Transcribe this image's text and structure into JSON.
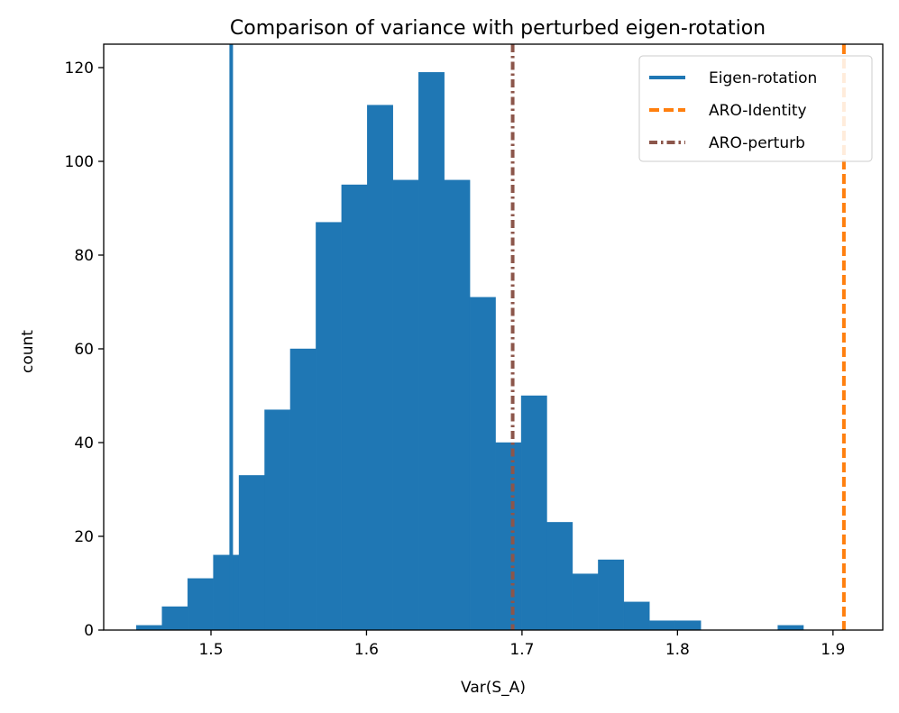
{
  "chart_data": {
    "type": "bar",
    "title": "Comparison of variance with perturbed eigen-rotation",
    "xlabel": "Var(S_A)",
    "ylabel": "count",
    "xlim": [
      1.431,
      1.932
    ],
    "ylim": [
      0,
      125
    ],
    "xticks": [
      1.5,
      1.6,
      1.7,
      1.8,
      1.9
    ],
    "xtick_labels": [
      "1.5",
      "1.6",
      "1.7",
      "1.8",
      "1.9"
    ],
    "yticks": [
      0,
      20,
      40,
      60,
      80,
      100,
      120
    ],
    "ytick_labels": [
      "0",
      "20",
      "40",
      "60",
      "80",
      "100",
      "120"
    ],
    "grid": false,
    "legend_position": "top-right",
    "histogram": {
      "color": "#1f77b4",
      "bin_edges": [
        1.452,
        1.4685,
        1.485,
        1.5015,
        1.518,
        1.5345,
        1.551,
        1.5675,
        1.584,
        1.6005,
        1.617,
        1.6335,
        1.65,
        1.6665,
        1.683,
        1.6995,
        1.716,
        1.7325,
        1.749,
        1.7655,
        1.782,
        1.7985,
        1.815,
        1.8315,
        1.848,
        1.8645,
        1.881,
        1.8975,
        1.914
      ],
      "counts": [
        1,
        5,
        11,
        16,
        33,
        47,
        60,
        87,
        95,
        112,
        96,
        119,
        96,
        71,
        40,
        50,
        23,
        12,
        15,
        6,
        2,
        2,
        0,
        0,
        0,
        1,
        0,
        0
      ]
    },
    "reference_lines": [
      {
        "name": "Eigen-rotation",
        "x": 1.513,
        "color": "#1f77b4",
        "style": "solid"
      },
      {
        "name": "ARO-Identity",
        "x": 1.907,
        "color": "#ff7f0e",
        "style": "dashed"
      },
      {
        "name": "ARO-perturb",
        "x": 1.694,
        "color": "#8c564b",
        "style": "dashdot"
      }
    ]
  }
}
